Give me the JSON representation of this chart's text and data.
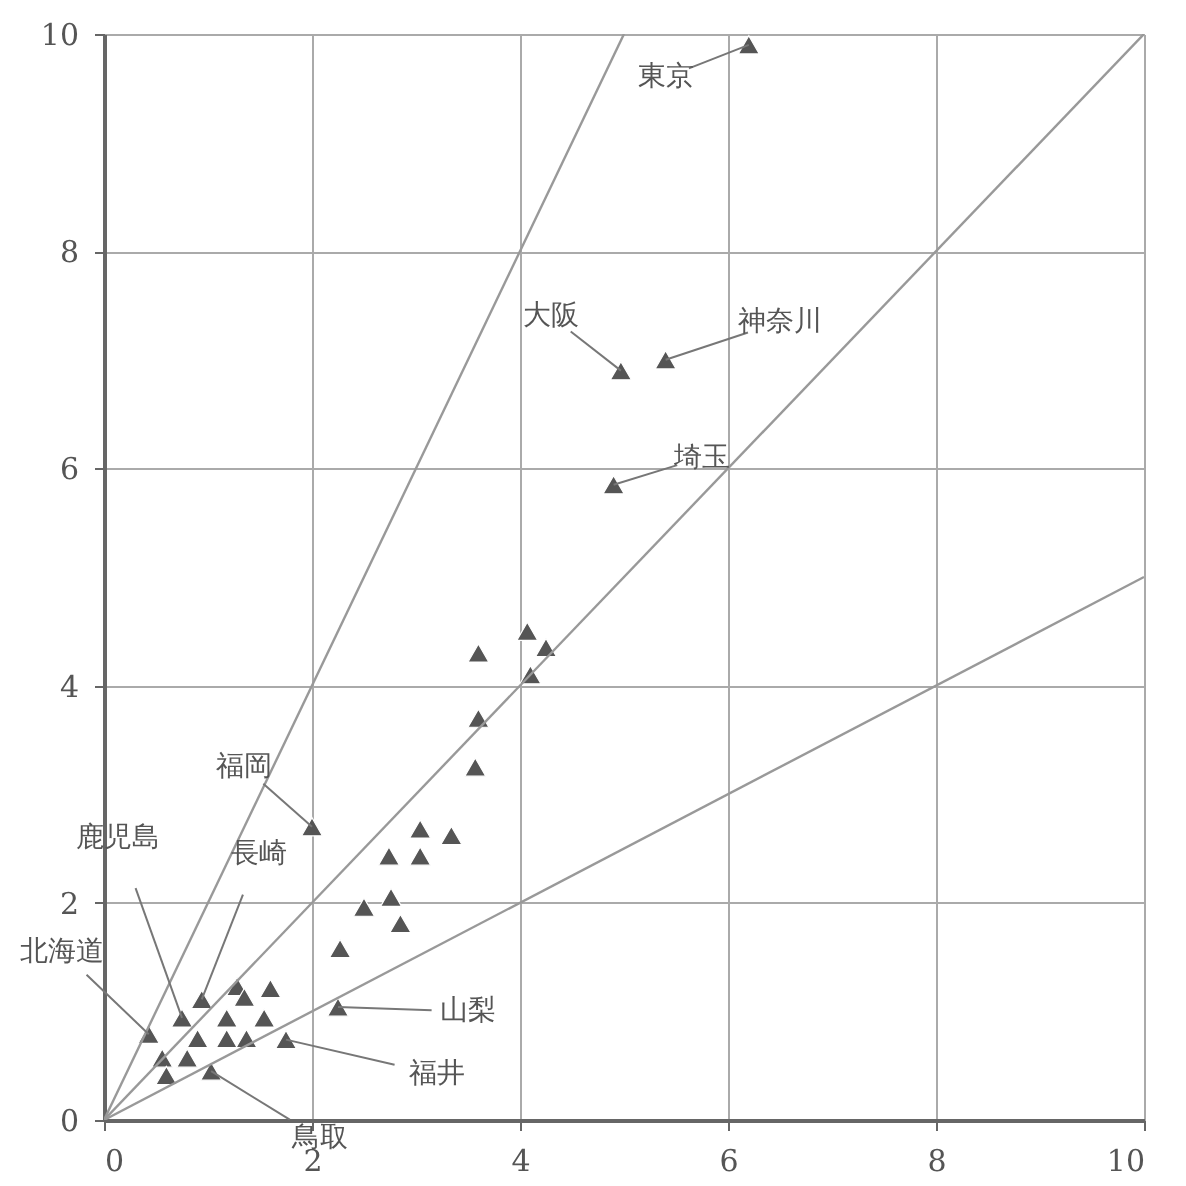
{
  "chart_data": {
    "type": "scatter",
    "xlim": [
      0,
      10
    ],
    "ylim": [
      0,
      10
    ],
    "xticks": [
      0,
      2,
      4,
      6,
      8,
      10
    ],
    "yticks": [
      0,
      2,
      4,
      6,
      8,
      10
    ],
    "grid": true,
    "marker": "triangle",
    "series": [
      {
        "color": "#555555",
        "x": [
          6.2,
          4.97,
          5.4,
          4.9,
          2.0,
          4.07,
          4.25,
          3.6,
          4.1,
          3.6,
          3.57,
          3.04,
          3.34,
          2.74,
          3.04,
          2.5,
          2.76,
          2.85,
          2.27,
          2.25,
          0.43,
          0.56,
          0.6,
          0.75,
          0.9,
          0.94,
          0.8,
          1.03,
          1.18,
          1.28,
          1.35,
          1.6,
          1.54,
          1.18,
          1.37,
          1.75
        ],
        "values": [
          9.9,
          6.9,
          7.0,
          5.85,
          2.7,
          4.5,
          4.35,
          4.3,
          4.1,
          3.7,
          3.25,
          2.68,
          2.62,
          2.43,
          2.43,
          1.96,
          2.05,
          1.81,
          1.58,
          1.04,
          0.79,
          0.57,
          0.41,
          0.94,
          0.75,
          1.11,
          0.57,
          0.45,
          0.94,
          1.23,
          1.13,
          1.21,
          0.94,
          0.75,
          0.75,
          0.74
        ]
      },
      {
        "type": "line",
        "marker": "none",
        "color": "#999999",
        "x": [
          0,
          5
        ],
        "values": [
          0,
          10
        ]
      },
      {
        "type": "line",
        "marker": "none",
        "color": "#999999",
        "x": [
          0,
          10
        ],
        "values": [
          0,
          10
        ]
      },
      {
        "type": "line",
        "marker": "none",
        "color": "#999999",
        "x": [
          0,
          10
        ],
        "values": [
          0,
          5
        ]
      }
    ],
    "annotations": [
      {
        "text": "東京",
        "x": 6.2,
        "y": 9.9
      },
      {
        "text": "大阪",
        "x": 4.97,
        "y": 6.9
      },
      {
        "text": "神奈川",
        "x": 5.4,
        "y": 7.0
      },
      {
        "text": "埼玉",
        "x": 4.9,
        "y": 5.85
      },
      {
        "text": "福岡",
        "x": 2.0,
        "y": 2.7
      },
      {
        "text": "長崎",
        "x": 0.94,
        "y": 1.11
      },
      {
        "text": "鹿児島",
        "x": 0.75,
        "y": 0.94
      },
      {
        "text": "北海道",
        "x": 0.43,
        "y": 0.79
      },
      {
        "text": "山梨",
        "x": 2.25,
        "y": 1.04
      },
      {
        "text": "福井",
        "x": 1.75,
        "y": 0.74
      },
      {
        "text": "鳥取",
        "x": 1.03,
        "y": 0.45
      }
    ]
  }
}
